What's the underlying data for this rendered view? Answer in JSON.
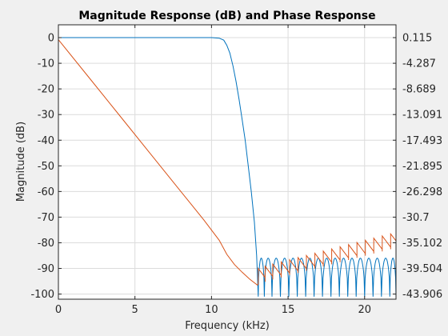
{
  "chart_data": {
    "type": "line",
    "title": "Magnitude Response (dB) and Phase Response",
    "xlabel": "Frequency (kHz)",
    "ylabel": "Magnitude (dB)",
    "xlim": [
      0,
      22.05
    ],
    "ylim": [
      -102,
      5
    ],
    "x_ticks": [
      0,
      5,
      10,
      15,
      20
    ],
    "y_ticks": [
      0,
      -10,
      -20,
      -30,
      -40,
      -50,
      -60,
      -70,
      -80,
      -90,
      -100
    ],
    "y2_ticks": [
      "0.115",
      "-4.287",
      "-8.689",
      "-13.091",
      "-17.493",
      "-21.895",
      "-26.298",
      "-30.7",
      "-35.102",
      "-39.504",
      "-43.906"
    ],
    "grid": true,
    "colors": {
      "magnitude": "#0072BD",
      "phase": "#D95319"
    },
    "series": [
      {
        "role": "magnitude",
        "x": [
          0,
          10.0,
          10.5,
          10.8,
          11.0,
          11.2,
          11.4,
          11.6,
          11.8,
          12.0,
          12.2,
          12.4,
          12.6,
          12.8,
          12.95,
          13.05
        ],
        "values": [
          0,
          0,
          -0.2,
          -1,
          -3,
          -6,
          -11,
          -17,
          -24,
          -32,
          -40,
          -50,
          -60,
          -72,
          -85,
          -101
        ],
        "stopband_lobes": {
          "nulls_khz": [
            13.05,
            13.45,
            13.95,
            14.5,
            15.05,
            15.6,
            16.15,
            16.7,
            17.25,
            17.8,
            18.35,
            18.9,
            19.45,
            20.0,
            20.55,
            21.1,
            21.65,
            22.05
          ],
          "peak_db": -86,
          "floor_db": -101
        }
      },
      {
        "role": "phase",
        "x": [
          0,
          2,
          4,
          6,
          8,
          9.5,
          10.5,
          11.0,
          11.5,
          12.0,
          12.5,
          13.0
        ],
        "values": [
          -0.8,
          -15.6,
          -30.4,
          -45.2,
          -60.0,
          -71.1,
          -79,
          -84.5,
          -88.5,
          -91.5,
          -94.2,
          -96.5
        ],
        "stopband_sawtooth": {
          "jump_khz": [
            13.05,
            13.5,
            14.0,
            14.55,
            15.1,
            15.65,
            16.2,
            16.75,
            17.3,
            17.85,
            18.4,
            18.95,
            19.5,
            20.05,
            20.6,
            21.15,
            21.7
          ],
          "level_start": -90,
          "level_end": -76.5
        }
      }
    ]
  }
}
